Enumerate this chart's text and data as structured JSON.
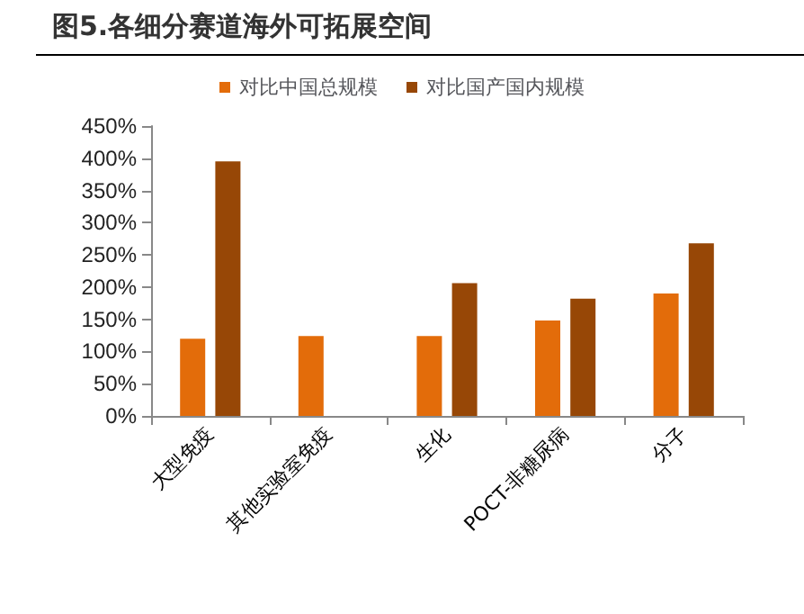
{
  "chart_data": {
    "type": "bar",
    "title": "图5.各细分赛道海外可拓展空间",
    "categories": [
      "大型免疫",
      "其他实验室免疫",
      "生化",
      "POCT-非糖尿病",
      "分子"
    ],
    "series": [
      {
        "name": "对比中国总规模",
        "color": "#e36c0a",
        "values": [
          120,
          124,
          124,
          148,
          190
        ]
      },
      {
        "name": "对比国产国内规模",
        "color": "#974706",
        "values": [
          395,
          null,
          206,
          182,
          268
        ]
      }
    ],
    "ylim": [
      0,
      450
    ],
    "yticks": [
      {
        "value": 0,
        "label": "0%"
      },
      {
        "value": 50,
        "label": "50%"
      },
      {
        "value": 100,
        "label": "100%"
      },
      {
        "value": 150,
        "label": "150%"
      },
      {
        "value": 200,
        "label": "200%"
      },
      {
        "value": 250,
        "label": "250%"
      },
      {
        "value": 300,
        "label": "300%"
      },
      {
        "value": 350,
        "label": "350%"
      },
      {
        "value": 400,
        "label": "400%"
      },
      {
        "value": 450,
        "label": "450%"
      }
    ],
    "grid": false,
    "legend": "top"
  }
}
